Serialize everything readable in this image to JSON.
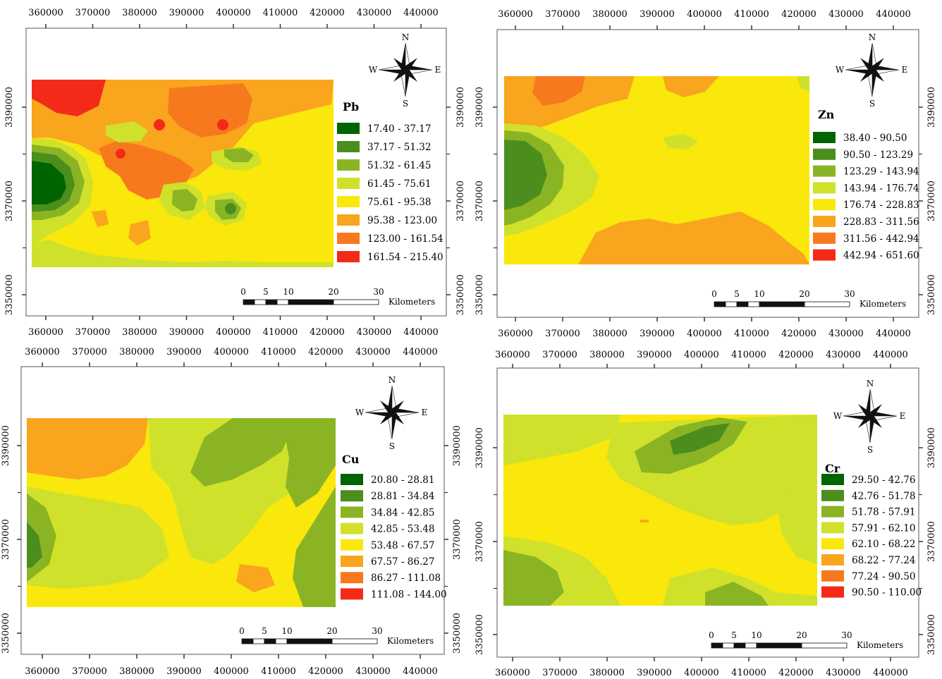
{
  "figure": {
    "x_ticks": [
      "360000",
      "370000",
      "380000",
      "390000",
      "400000",
      "410000",
      "420000",
      "430000",
      "440000"
    ],
    "y_ticks": [
      "3390000",
      "3370000",
      "3350000"
    ],
    "compass": {
      "n": "N",
      "s": "S",
      "e": "E",
      "w": "W"
    },
    "scalebar": {
      "labels": [
        "0",
        "5",
        "10",
        "20",
        "30"
      ],
      "unit": "Kilometers"
    },
    "colors": {
      "ramp": [
        "#006400",
        "#4c8e1e",
        "#8bb424",
        "#cfe12a",
        "#fae70c",
        "#f9a51e",
        "#f67a1d",
        "#f42a18"
      ]
    },
    "panels": [
      {
        "id": "pb",
        "element": "Pb",
        "legend": [
          "17.40 - 37.17",
          "37.17 - 51.32",
          "51.32 - 61.45",
          "61.45 - 75.61",
          "75.61 - 95.38",
          "95.38 - 123.00",
          "123.00 - 161.54",
          "161.54 - 215.40"
        ]
      },
      {
        "id": "zn",
        "element": "Zn",
        "legend": [
          "38.40 - 90.50",
          "90.50 - 123.29",
          "123.29 - 143.94",
          "143.94 - 176.74",
          "176.74 - 228.83",
          "228.83 - 311.56",
          "311.56 - 442.94",
          "442.94 - 651.60"
        ]
      },
      {
        "id": "cu",
        "element": "Cu",
        "legend": [
          "20.80 - 28.81",
          "28.81 - 34.84",
          "34.84 - 42.85",
          "42.85 - 53.48",
          "53.48 - 67.57",
          "67.57 - 86.27",
          "86.27 - 111.08",
          "111.08 - 144.00"
        ]
      },
      {
        "id": "cr",
        "element": "Cr",
        "legend": [
          "29.50 - 42.76",
          "42.76 - 51.78",
          "51.78 - 57.91",
          "57.91 - 62.10",
          "62.10 - 68.22",
          "68.22 - 77.24",
          "77.24 - 90.50",
          "90.50 - 110.00"
        ]
      }
    ]
  }
}
